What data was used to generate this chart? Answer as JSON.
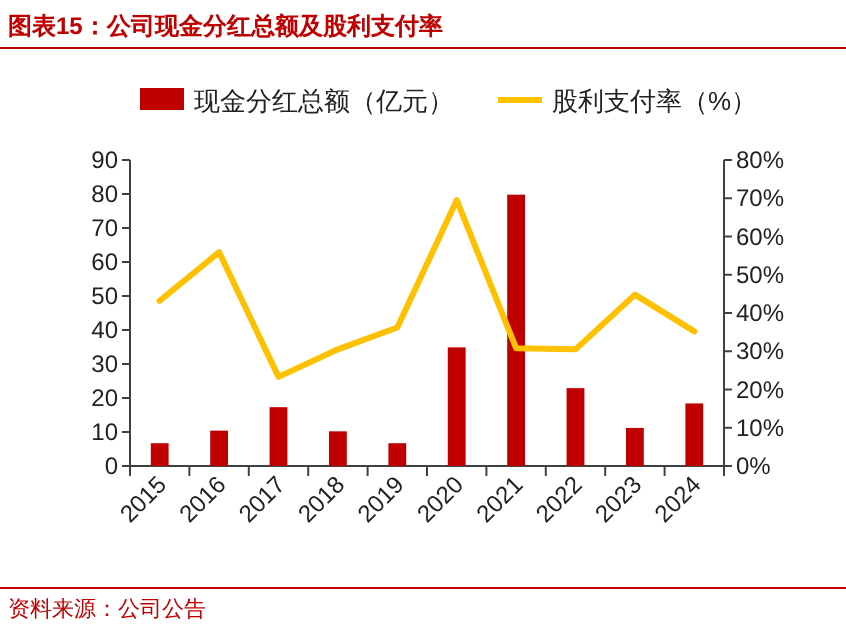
{
  "chart_data": {
    "type": "bar",
    "title": "图表15：公司现金分红总额及股利支付率",
    "categories": [
      "2015",
      "2016",
      "2017",
      "2018",
      "2019",
      "2020",
      "2021",
      "2022",
      "2023",
      "2024"
    ],
    "series": [
      {
        "name": "现金分红总额（亿元）",
        "color": "#c00000",
        "values": [
          6.7,
          10.4,
          17.3,
          10.2,
          6.7,
          34.9,
          79.8,
          22.9,
          11.2,
          18.4
        ]
      },
      {
        "name": "股利支付率（%）",
        "type": "line",
        "axis": "y2",
        "color": "#ffc000",
        "values": [
          43.2,
          55.9,
          23.3,
          30.5,
          36.2,
          69.5,
          30.8,
          30.5,
          44.8,
          35.2
        ]
      }
    ],
    "ylim": [
      0,
      90
    ],
    "yticks": [
      0,
      10,
      20,
      30,
      40,
      50,
      60,
      70,
      80,
      90
    ],
    "y2lim": [
      0,
      80
    ],
    "y2ticks": [
      {
        "value": 0,
        "label": "0%"
      },
      {
        "value": 10,
        "label": "10%"
      },
      {
        "value": 20,
        "label": "20%"
      },
      {
        "value": 30,
        "label": "30%"
      },
      {
        "value": 40,
        "label": "40%"
      },
      {
        "value": 50,
        "label": "50%"
      },
      {
        "value": 60,
        "label": "60%"
      },
      {
        "value": 70,
        "label": "70%"
      },
      {
        "value": 80,
        "label": "80%"
      }
    ],
    "legend": "top",
    "grid": false,
    "annotations": [
      "资料来源：公司公告"
    ]
  }
}
